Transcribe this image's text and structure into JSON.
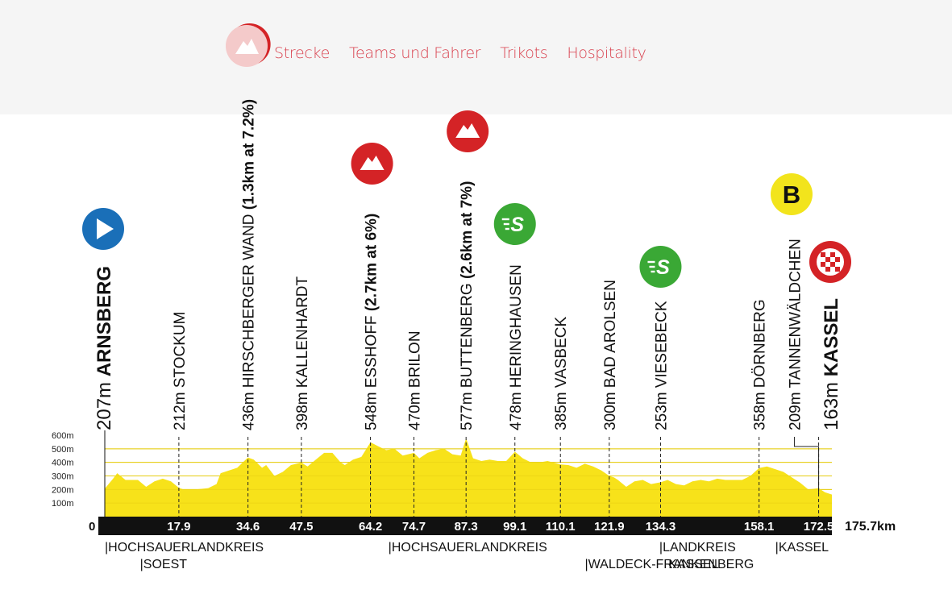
{
  "nav": {
    "items": [
      {
        "label": "Strecke"
      },
      {
        "label": "Teams und Fahrer"
      },
      {
        "label": "Trikots"
      },
      {
        "label": "Hospitality"
      }
    ]
  },
  "colors": {
    "nav_text": "#d9424f",
    "profile_fill": "#f7e21a",
    "base_bar": "#111111",
    "start_icon": "#1a6fb8",
    "climb_icon": "#d42326",
    "sprint_icon": "#3aa835",
    "bonus_icon": "#f2e41c"
  },
  "chart_data": {
    "type": "area",
    "title": "",
    "xlabel": "",
    "ylabel": "",
    "total_distance_label": "175.7km",
    "zero_label": "0",
    "xlim": [
      0,
      175.7
    ],
    "ylim": [
      0,
      600
    ],
    "y_ticks": [
      "600m",
      "500m",
      "400m",
      "300m",
      "200m",
      "100m"
    ],
    "y_tick_values": [
      600,
      500,
      400,
      300,
      200,
      100
    ],
    "km_ticks": [
      17.9,
      34.6,
      47.5,
      64.2,
      74.7,
      87.3,
      99.1,
      110.1,
      121.9,
      134.3,
      158.1,
      172.5
    ],
    "km_tick_labels": [
      "17.9",
      "34.6",
      "47.5",
      "64.2",
      "74.7",
      "87.3",
      "99.1",
      "110.1",
      "121.9",
      "134.3",
      "158.1",
      "172.5"
    ],
    "elevation_profile": {
      "km": [
        0,
        2,
        3,
        5,
        8,
        10,
        12,
        14,
        16,
        17.9,
        19,
        22,
        25,
        27,
        28,
        30,
        32,
        34.6,
        36,
        38,
        39,
        41,
        43,
        45,
        47.5,
        49,
        51,
        53,
        55,
        57,
        58,
        60,
        62,
        64.2,
        66,
        68,
        70,
        72,
        74.7,
        76,
        78,
        80,
        82,
        84,
        86,
        87.3,
        89,
        91,
        93,
        95,
        97,
        99.1,
        101,
        103,
        105,
        107,
        110.1,
        112,
        114,
        116,
        118,
        120,
        121.9,
        123,
        124,
        126,
        128,
        130,
        132,
        134.3,
        136,
        138,
        140,
        142,
        144,
        146,
        148,
        150,
        152,
        154,
        156,
        158.1,
        160,
        162,
        164,
        166,
        168,
        170,
        172.5,
        174,
        175.7
      ],
      "m": [
        207,
        280,
        320,
        270,
        270,
        220,
        260,
        280,
        260,
        212,
        200,
        200,
        210,
        240,
        320,
        340,
        360,
        436,
        420,
        360,
        380,
        300,
        330,
        380,
        398,
        370,
        420,
        470,
        470,
        400,
        380,
        420,
        440,
        548,
        520,
        490,
        500,
        450,
        470,
        430,
        470,
        490,
        500,
        460,
        450,
        577,
        430,
        410,
        420,
        410,
        410,
        478,
        430,
        400,
        400,
        410,
        385,
        380,
        360,
        390,
        370,
        340,
        300,
        290,
        270,
        220,
        260,
        270,
        240,
        253,
        270,
        240,
        230,
        260,
        270,
        260,
        280,
        270,
        270,
        270,
        300,
        358,
        370,
        350,
        330,
        290,
        250,
        200,
        209,
        180,
        163
      ]
    },
    "waypoints": [
      {
        "km": 0,
        "elev": "207m",
        "name": "ARNSBERG",
        "bold": true,
        "icon": "start"
      },
      {
        "km": 17.9,
        "elev": "212m",
        "name": "STOCKUM"
      },
      {
        "km": 34.6,
        "elev": "436m",
        "name": "HIRSCHBERGER WAND",
        "detail": "(1.3km at 7.2%)",
        "icon": "climb"
      },
      {
        "km": 47.5,
        "elev": "398m",
        "name": "KALLENHARDT"
      },
      {
        "km": 64.2,
        "elev": "548m",
        "name": "ESSHOFF",
        "detail": "(2.7km at 6%)",
        "icon": "climb"
      },
      {
        "km": 74.7,
        "elev": "470m",
        "name": "BRILON"
      },
      {
        "km": 87.3,
        "elev": "577m",
        "name": "BUTTENBERG",
        "detail": "(2.6km at 7%)",
        "icon": "climb"
      },
      {
        "km": 99.1,
        "elev": "478m",
        "name": "HERINGHAUSEN",
        "icon": "sprint"
      },
      {
        "km": 110.1,
        "elev": "385m",
        "name": "VASBECK"
      },
      {
        "km": 121.9,
        "elev": "300m",
        "name": "BAD AROLSEN"
      },
      {
        "km": 134.3,
        "elev": "253m",
        "name": "VIESEBECK",
        "icon": "sprint"
      },
      {
        "km": 158.1,
        "elev": "358m",
        "name": "DÖRNBERG"
      },
      {
        "km": 172.5,
        "elev": "209m",
        "name": "TANNENWÄLDCHEN",
        "icon": "bonus"
      },
      {
        "km": 175.7,
        "elev": "163m",
        "name": "KASSEL",
        "bold": true,
        "icon": "finish"
      }
    ],
    "icon_labels": {
      "sprint": "S",
      "bonus": "B"
    },
    "districts": [
      {
        "label": "|HOCHSAUERLANDKREIS",
        "km": 0,
        "row": 0
      },
      {
        "label": "|SOEST",
        "km": 8.5,
        "row": 1
      },
      {
        "label": "|HOCHSAUERLANDKREIS",
        "km": 68.5,
        "row": 0
      },
      {
        "label": "|WALDECK-FRANKENBERG",
        "km": 116,
        "row": 1
      },
      {
        "label": "|LANDKREIS",
        "km": 134,
        "row": 0
      },
      {
        "label": "KASSEL",
        "km": 136.2,
        "row": 1
      },
      {
        "label": "|KASSEL",
        "km": 162,
        "row": 0
      }
    ]
  }
}
